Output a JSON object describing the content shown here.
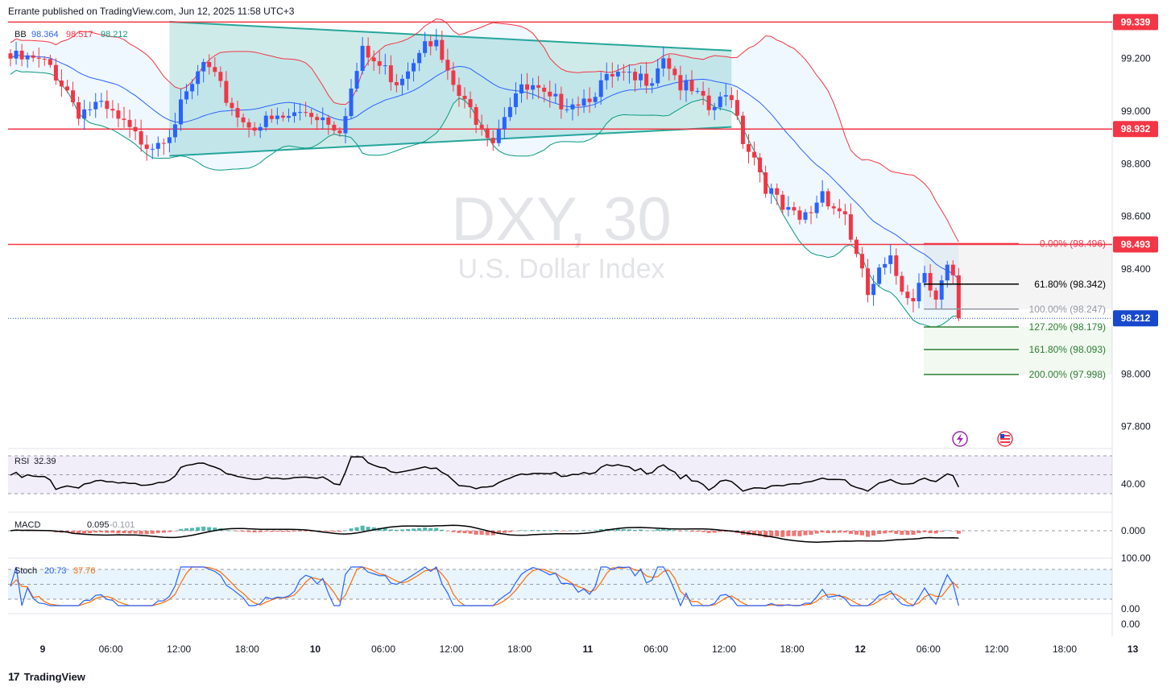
{
  "header": {
    "text": "Errante published on TradingView.com, Jun 12, 2025 11:58 UTC+3"
  },
  "brand": {
    "logo": "17",
    "name": "TradingView"
  },
  "watermark": {
    "symbol": "DXY, 30",
    "name": "U.S. Dollar Index"
  },
  "colors": {
    "up": "#2962ff",
    "down": "#f23645",
    "bb_basis": "#2962ff",
    "bb_upper": "#f23645",
    "bb_lower": "#089981",
    "triangle": "#26a69a",
    "hline": "#f23645",
    "rsi": "#000000",
    "macd": "#000000",
    "stoch_k": "#2962ff",
    "stoch_d": "#ff6d00",
    "badge_red": "#f23645",
    "badge_blue": "#1848cc"
  },
  "chart_data": {
    "type": "candlestick",
    "title": "U.S. Dollar Index",
    "symbol": "DXY",
    "interval": "30",
    "ylim": [
      97.72,
      99.44
    ],
    "yticks": [
      "99.200",
      "99.000",
      "98.800",
      "98.600",
      "98.400",
      "98.000",
      "97.800"
    ],
    "xticks": [
      "9",
      "06:00",
      "12:00",
      "18:00",
      "10",
      "06:00",
      "12:00",
      "18:00",
      "11",
      "06:00",
      "12:00",
      "18:00",
      "12",
      "06:00",
      "12:00",
      "18:00",
      "13"
    ],
    "xticks_bars": [
      0,
      12,
      24,
      36,
      48,
      60,
      72,
      84,
      96,
      108,
      120,
      132,
      144,
      156,
      168,
      180,
      192
    ],
    "price_keyframes": [
      [
        0,
        99.2
      ],
      [
        4,
        99.19
      ],
      [
        7,
        99.17
      ],
      [
        10,
        99.08
      ],
      [
        12,
        99.0
      ],
      [
        15,
        99.02
      ],
      [
        18,
        98.98
      ],
      [
        22,
        98.9
      ],
      [
        25,
        98.88
      ],
      [
        28,
        98.93
      ],
      [
        31,
        99.05
      ],
      [
        34,
        99.18
      ],
      [
        38,
        99.05
      ],
      [
        41,
        98.96
      ],
      [
        44,
        98.95
      ],
      [
        48,
        98.97
      ],
      [
        52,
        99.0
      ],
      [
        55,
        98.98
      ],
      [
        58,
        98.94
      ],
      [
        60,
        99.08
      ],
      [
        62,
        99.22
      ],
      [
        65,
        99.17
      ],
      [
        68,
        99.12
      ],
      [
        71,
        99.2
      ],
      [
        73,
        99.3
      ],
      [
        75,
        99.25
      ],
      [
        77,
        99.13
      ],
      [
        80,
        99.02
      ],
      [
        83,
        98.96
      ],
      [
        85,
        98.9
      ],
      [
        87,
        99.0
      ],
      [
        89,
        99.07
      ],
      [
        92,
        99.08
      ],
      [
        95,
        99.03
      ],
      [
        98,
        99.04
      ],
      [
        101,
        99.05
      ],
      [
        104,
        99.1
      ],
      [
        107,
        99.13
      ],
      [
        110,
        99.11
      ],
      [
        113,
        99.14
      ],
      [
        115,
        99.22
      ],
      [
        118,
        99.1
      ],
      [
        121,
        99.05
      ],
      [
        123,
        99.0
      ],
      [
        125,
        99.03
      ],
      [
        127,
        99.07
      ],
      [
        129,
        98.9
      ],
      [
        131,
        98.83
      ],
      [
        133,
        98.72
      ],
      [
        136,
        98.62
      ],
      [
        139,
        98.58
      ],
      [
        141,
        98.62
      ],
      [
        143,
        98.7
      ],
      [
        145,
        98.64
      ],
      [
        147,
        98.61
      ],
      [
        149,
        98.44
      ],
      [
        151,
        98.3
      ],
      [
        153,
        98.38
      ],
      [
        155,
        98.42
      ],
      [
        157,
        98.33
      ],
      [
        159,
        98.3
      ],
      [
        161,
        98.4
      ],
      [
        163,
        98.3
      ],
      [
        165,
        98.4
      ],
      [
        166,
        98.35
      ],
      [
        167,
        98.22
      ]
    ],
    "bollinger": {
      "label": "BB",
      "basis": "98.364",
      "upper": "98.517",
      "lower": "98.212"
    },
    "levels": [
      {
        "label": "99.339",
        "value": 99.339
      },
      {
        "label": "98.932",
        "value": 98.932
      },
      {
        "label": "98.493",
        "value": 98.493
      }
    ],
    "current": {
      "label": "98.212",
      "value": 98.212
    },
    "fibonacci": [
      {
        "label": "0.00% (98.496)",
        "value": 98.496,
        "color": "#f23645"
      },
      {
        "label": "61.80% (98.342)",
        "value": 98.342,
        "color": "#000000"
      },
      {
        "label": "100.00% (98.247)",
        "value": 98.247,
        "color": "#9598a1"
      },
      {
        "label": "127.20% (98.179)",
        "value": 98.179,
        "color": "#2e7d32"
      },
      {
        "label": "161.80% (98.093)",
        "value": 98.093,
        "color": "#2e7d32"
      },
      {
        "label": "200.00% (97.998)",
        "value": 97.998,
        "color": "#2e7d32"
      }
    ],
    "triangle": {
      "x1": 0,
      "x2": 127,
      "top_start": 99.34,
      "top_end": 99.23,
      "bottom_start": 98.83,
      "bottom_end": 98.94
    },
    "rsi": {
      "label": "RSI",
      "value": "32.39",
      "tick": "40.00"
    },
    "macd": {
      "label": "MACD",
      "value1": "0.095",
      "value2": "-0.101",
      "tick": "0.000"
    },
    "stoch": {
      "label": "Stoch",
      "k": "20.73",
      "d": "37.76",
      "ticks": [
        "100.00",
        "0.00",
        "0.00"
      ]
    }
  }
}
